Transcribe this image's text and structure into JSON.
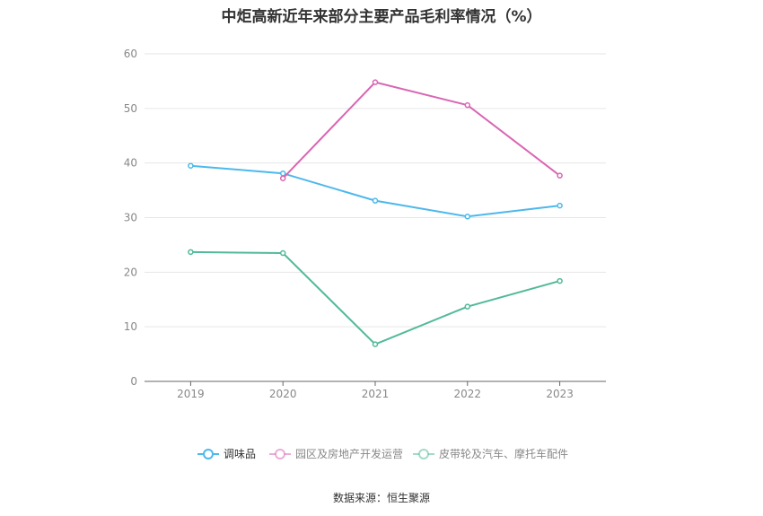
{
  "chart_data": {
    "type": "line",
    "title": "中炬高新近年来部分主要产品毛利率情况（%）",
    "categories": [
      "2019",
      "2020",
      "2021",
      "2022",
      "2023"
    ],
    "ylim": [
      0,
      60
    ],
    "yticks": [
      "0",
      "10",
      "20",
      "30",
      "40",
      "50",
      "60"
    ],
    "grid": true,
    "legend_position": "bottom",
    "series": [
      {
        "name": "调味品",
        "color": "#4db8ec",
        "values": [
          39.5,
          38.1,
          33.1,
          30.2,
          32.2
        ]
      },
      {
        "name": "园区及房地产开发运营",
        "color": "#d966b3",
        "values": [
          null,
          37.2,
          54.8,
          50.6,
          37.7
        ]
      },
      {
        "name": "皮带轮及汽车、摩托车配件",
        "color": "#52b99a",
        "values": [
          23.7,
          23.5,
          6.8,
          13.7,
          18.4
        ]
      }
    ]
  },
  "footer": {
    "source": "数据来源：恒生聚源"
  }
}
